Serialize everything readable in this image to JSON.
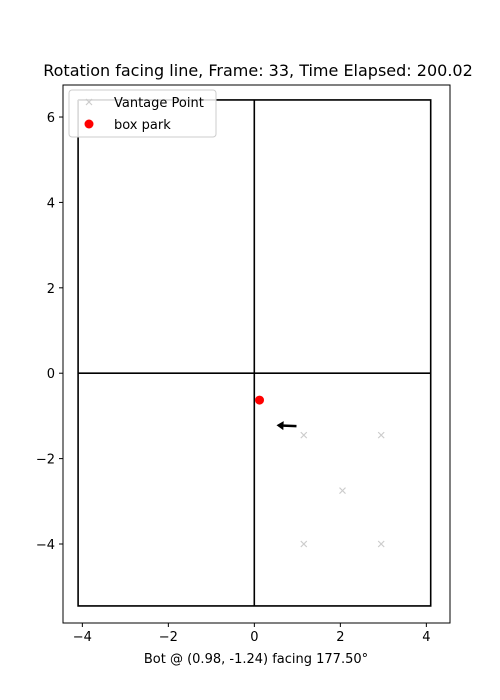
{
  "chart_data": {
    "type": "scatter",
    "title": "Rotation facing line, Frame: 33, Time Elapsed: 200.02",
    "xlabel": "Bot @ (0.98, -1.24) facing 177.50°",
    "ylabel": "",
    "xlim": [
      -4.45,
      4.55
    ],
    "ylim": [
      -5.85,
      6.75
    ],
    "x_ticks": [
      -4,
      -2,
      0,
      2,
      4
    ],
    "y_ticks": [
      -4,
      -2,
      0,
      2,
      4,
      6
    ],
    "x_tick_labels": [
      "−4",
      "−2",
      "0",
      "2",
      "4"
    ],
    "y_tick_labels": [
      "−4",
      "−2",
      "0",
      "2",
      "4",
      "6"
    ],
    "grid": false,
    "legend_position": "top-left",
    "boundary_lines": [
      {
        "x": [
          -4.1,
          4.1,
          4.1,
          -4.1,
          -4.1
        ],
        "y": [
          6.4,
          6.4,
          -5.45,
          -5.45,
          6.4
        ]
      },
      {
        "x": [
          0,
          0
        ],
        "y": [
          6.4,
          -5.45
        ]
      },
      {
        "x": [
          -4.1,
          4.1
        ],
        "y": [
          0,
          0
        ]
      }
    ],
    "series": [
      {
        "name": "Vantage Point",
        "marker": "x",
        "color": "#cccccc",
        "x": [
          1.15,
          2.95,
          2.05,
          1.15,
          2.95
        ],
        "y": [
          -1.45,
          -1.45,
          -2.75,
          -4.0,
          -4.0
        ]
      },
      {
        "name": "box park",
        "marker": "o",
        "color": "#ff0000",
        "x": [
          0.12
        ],
        "y": [
          -0.63
        ]
      }
    ],
    "bot": {
      "x": 0.98,
      "y": -1.24,
      "heading_deg": 177.5,
      "color": "#000000"
    }
  }
}
